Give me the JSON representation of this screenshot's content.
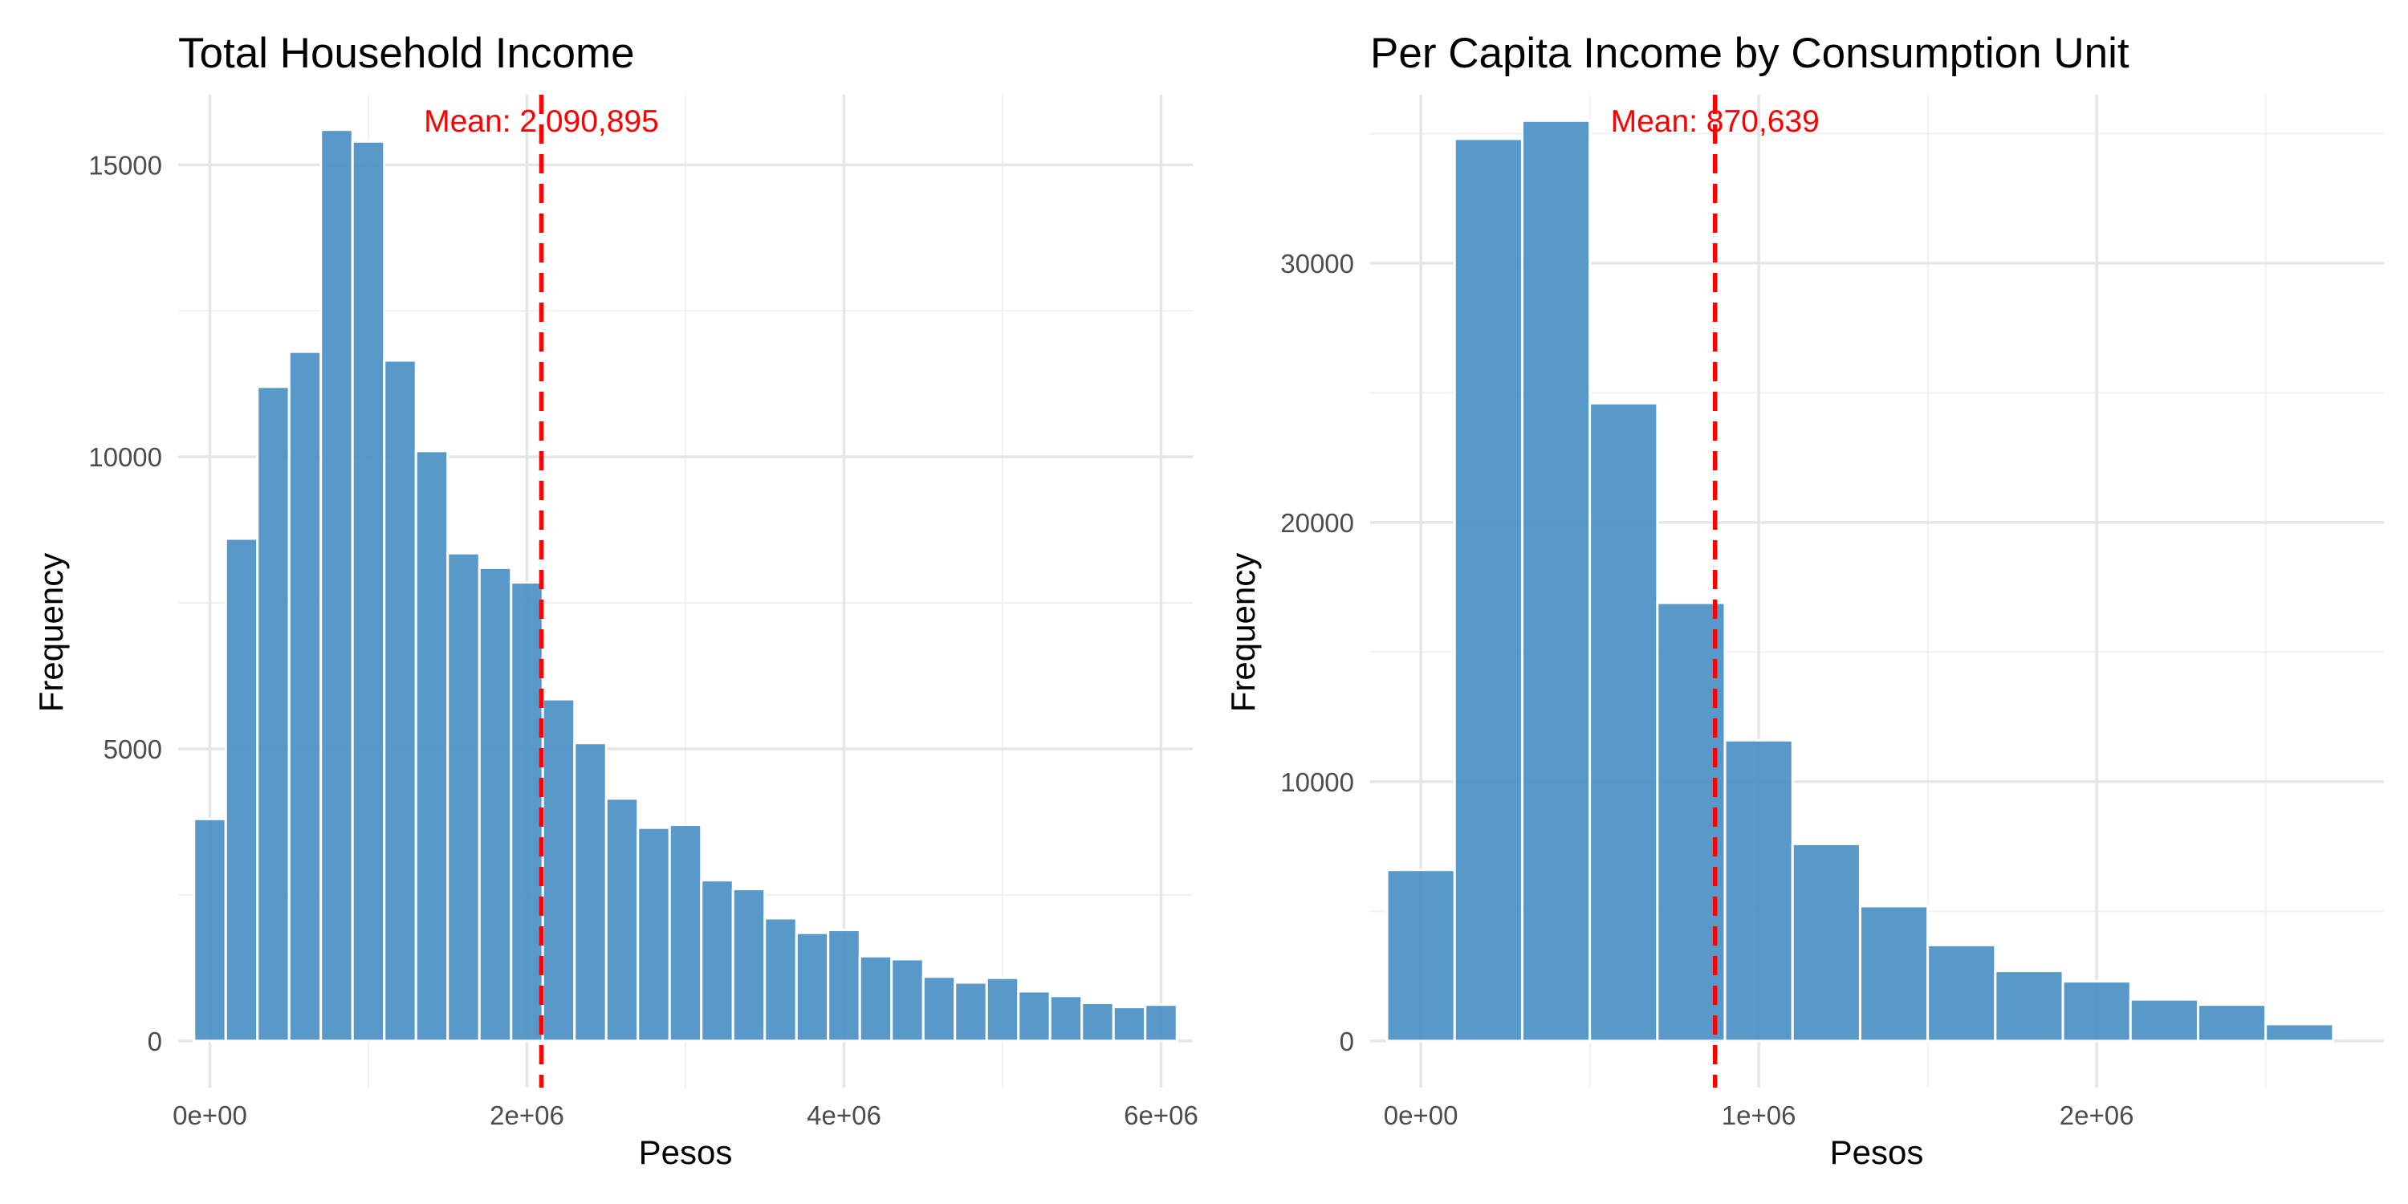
{
  "colors": {
    "bar": "#4a90c4",
    "mean": "#ff0000"
  },
  "chart_data": [
    {
      "type": "bar",
      "title": "Total Household Income",
      "xlabel": "Pesos",
      "ylabel": "Frequency",
      "xlim": [
        -200000,
        6200000
      ],
      "ylim": [
        -800,
        16200
      ],
      "xticks": [
        0,
        2000000,
        4000000,
        6000000
      ],
      "xtick_labels": [
        "0e+00",
        "2e+06",
        "4e+06",
        "6e+06"
      ],
      "xminor": [
        1000000,
        3000000,
        5000000
      ],
      "yticks": [
        0,
        5000,
        10000,
        15000
      ],
      "ytick_labels": [
        "0",
        "5000",
        "10000",
        "15000"
      ],
      "yminor": [
        2500,
        7500,
        12500
      ],
      "bin_width": 200000,
      "bin_start": 0,
      "values": [
        3800,
        8600,
        11200,
        11800,
        15600,
        15400,
        11650,
        10100,
        8350,
        8100,
        7850,
        5850,
        5100,
        4150,
        3650,
        3700,
        2750,
        2600,
        2100,
        1850,
        1900,
        1450,
        1400,
        1100,
        1000,
        1080,
        850,
        770,
        650,
        580,
        620
      ],
      "mean": 2090895,
      "mean_label": "Mean: 2,090,895",
      "grid": true
    },
    {
      "type": "bar",
      "title": "Per Capita Income by Consumption Unit",
      "xlabel": "Pesos",
      "ylabel": "Frequency",
      "xlim": [
        -150000,
        2850000
      ],
      "ylim": [
        -1800,
        36500
      ],
      "xticks": [
        0,
        1000000,
        2000000
      ],
      "xtick_labels": [
        "0e+00",
        "1e+06",
        "2e+06"
      ],
      "xminor": [
        500000,
        1500000,
        2500000
      ],
      "yticks": [
        0,
        10000,
        20000,
        30000
      ],
      "ytick_labels": [
        "0",
        "10000",
        "20000",
        "30000"
      ],
      "yminor": [
        5000,
        15000,
        25000,
        35000
      ],
      "bin_width": 200000,
      "bin_start": 0,
      "values": [
        6600,
        34800,
        35500,
        24600,
        16900,
        11600,
        7600,
        5200,
        3700,
        2700,
        2300,
        1600,
        1400,
        650
      ],
      "mean": 870639,
      "mean_label": "Mean: 870,639",
      "grid": true
    }
  ]
}
